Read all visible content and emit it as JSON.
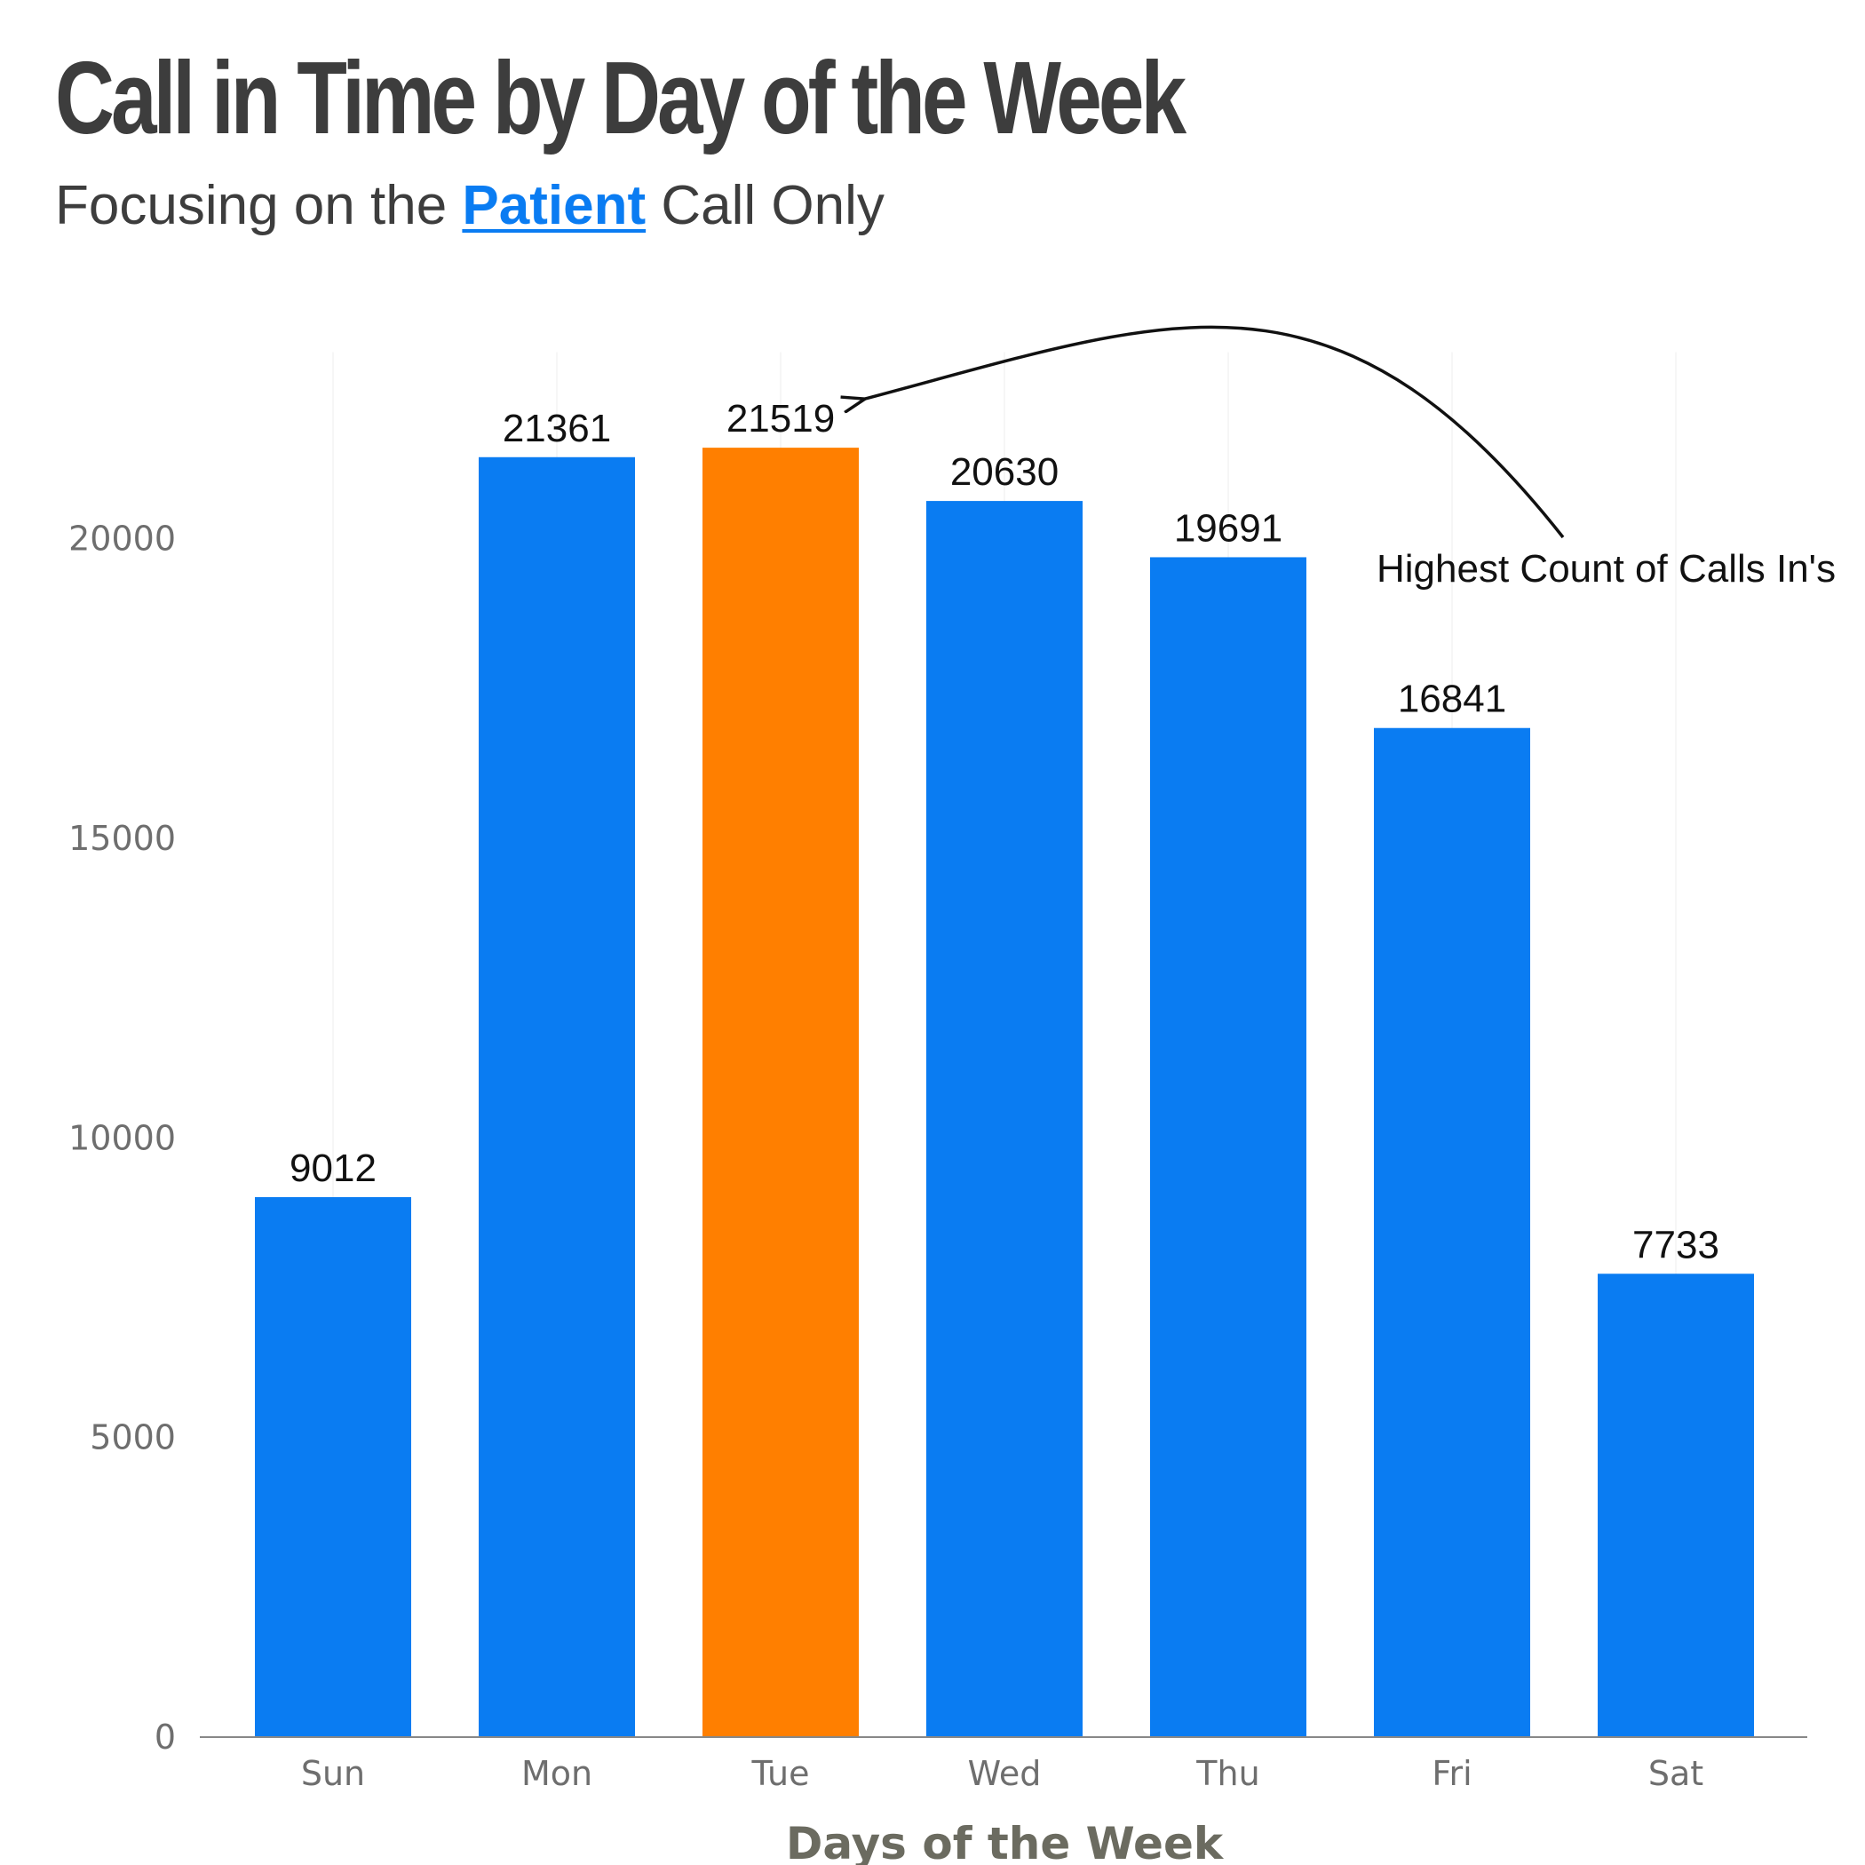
{
  "chart_data": {
    "type": "bar",
    "title": "Call in Time by Day of the Week",
    "subtitle": {
      "prefix": "Focusing on the ",
      "highlight": "Patient",
      "suffix": " Call Only"
    },
    "categories": [
      "Sun",
      "Mon",
      "Tue",
      "Wed",
      "Thu",
      "Fri",
      "Sat"
    ],
    "values": [
      9012,
      21361,
      21519,
      20630,
      19691,
      16841,
      7733
    ],
    "highlight_category": "Tue",
    "xlabel": "Days of the Week",
    "ylabel": "",
    "ylim": [
      0,
      24000
    ],
    "yticks": [
      0,
      5000,
      10000,
      15000,
      20000
    ],
    "vertical_grid": true,
    "horizontal_grid": false,
    "annotation": {
      "text": "Highest Count of Calls In's",
      "points_to": "Tue"
    },
    "colors": {
      "bar": "#0a7cf2",
      "highlight_bar": "#ff7f00",
      "subtitle_highlight": "#0a7cf2",
      "title": "#3d3d3d"
    }
  }
}
